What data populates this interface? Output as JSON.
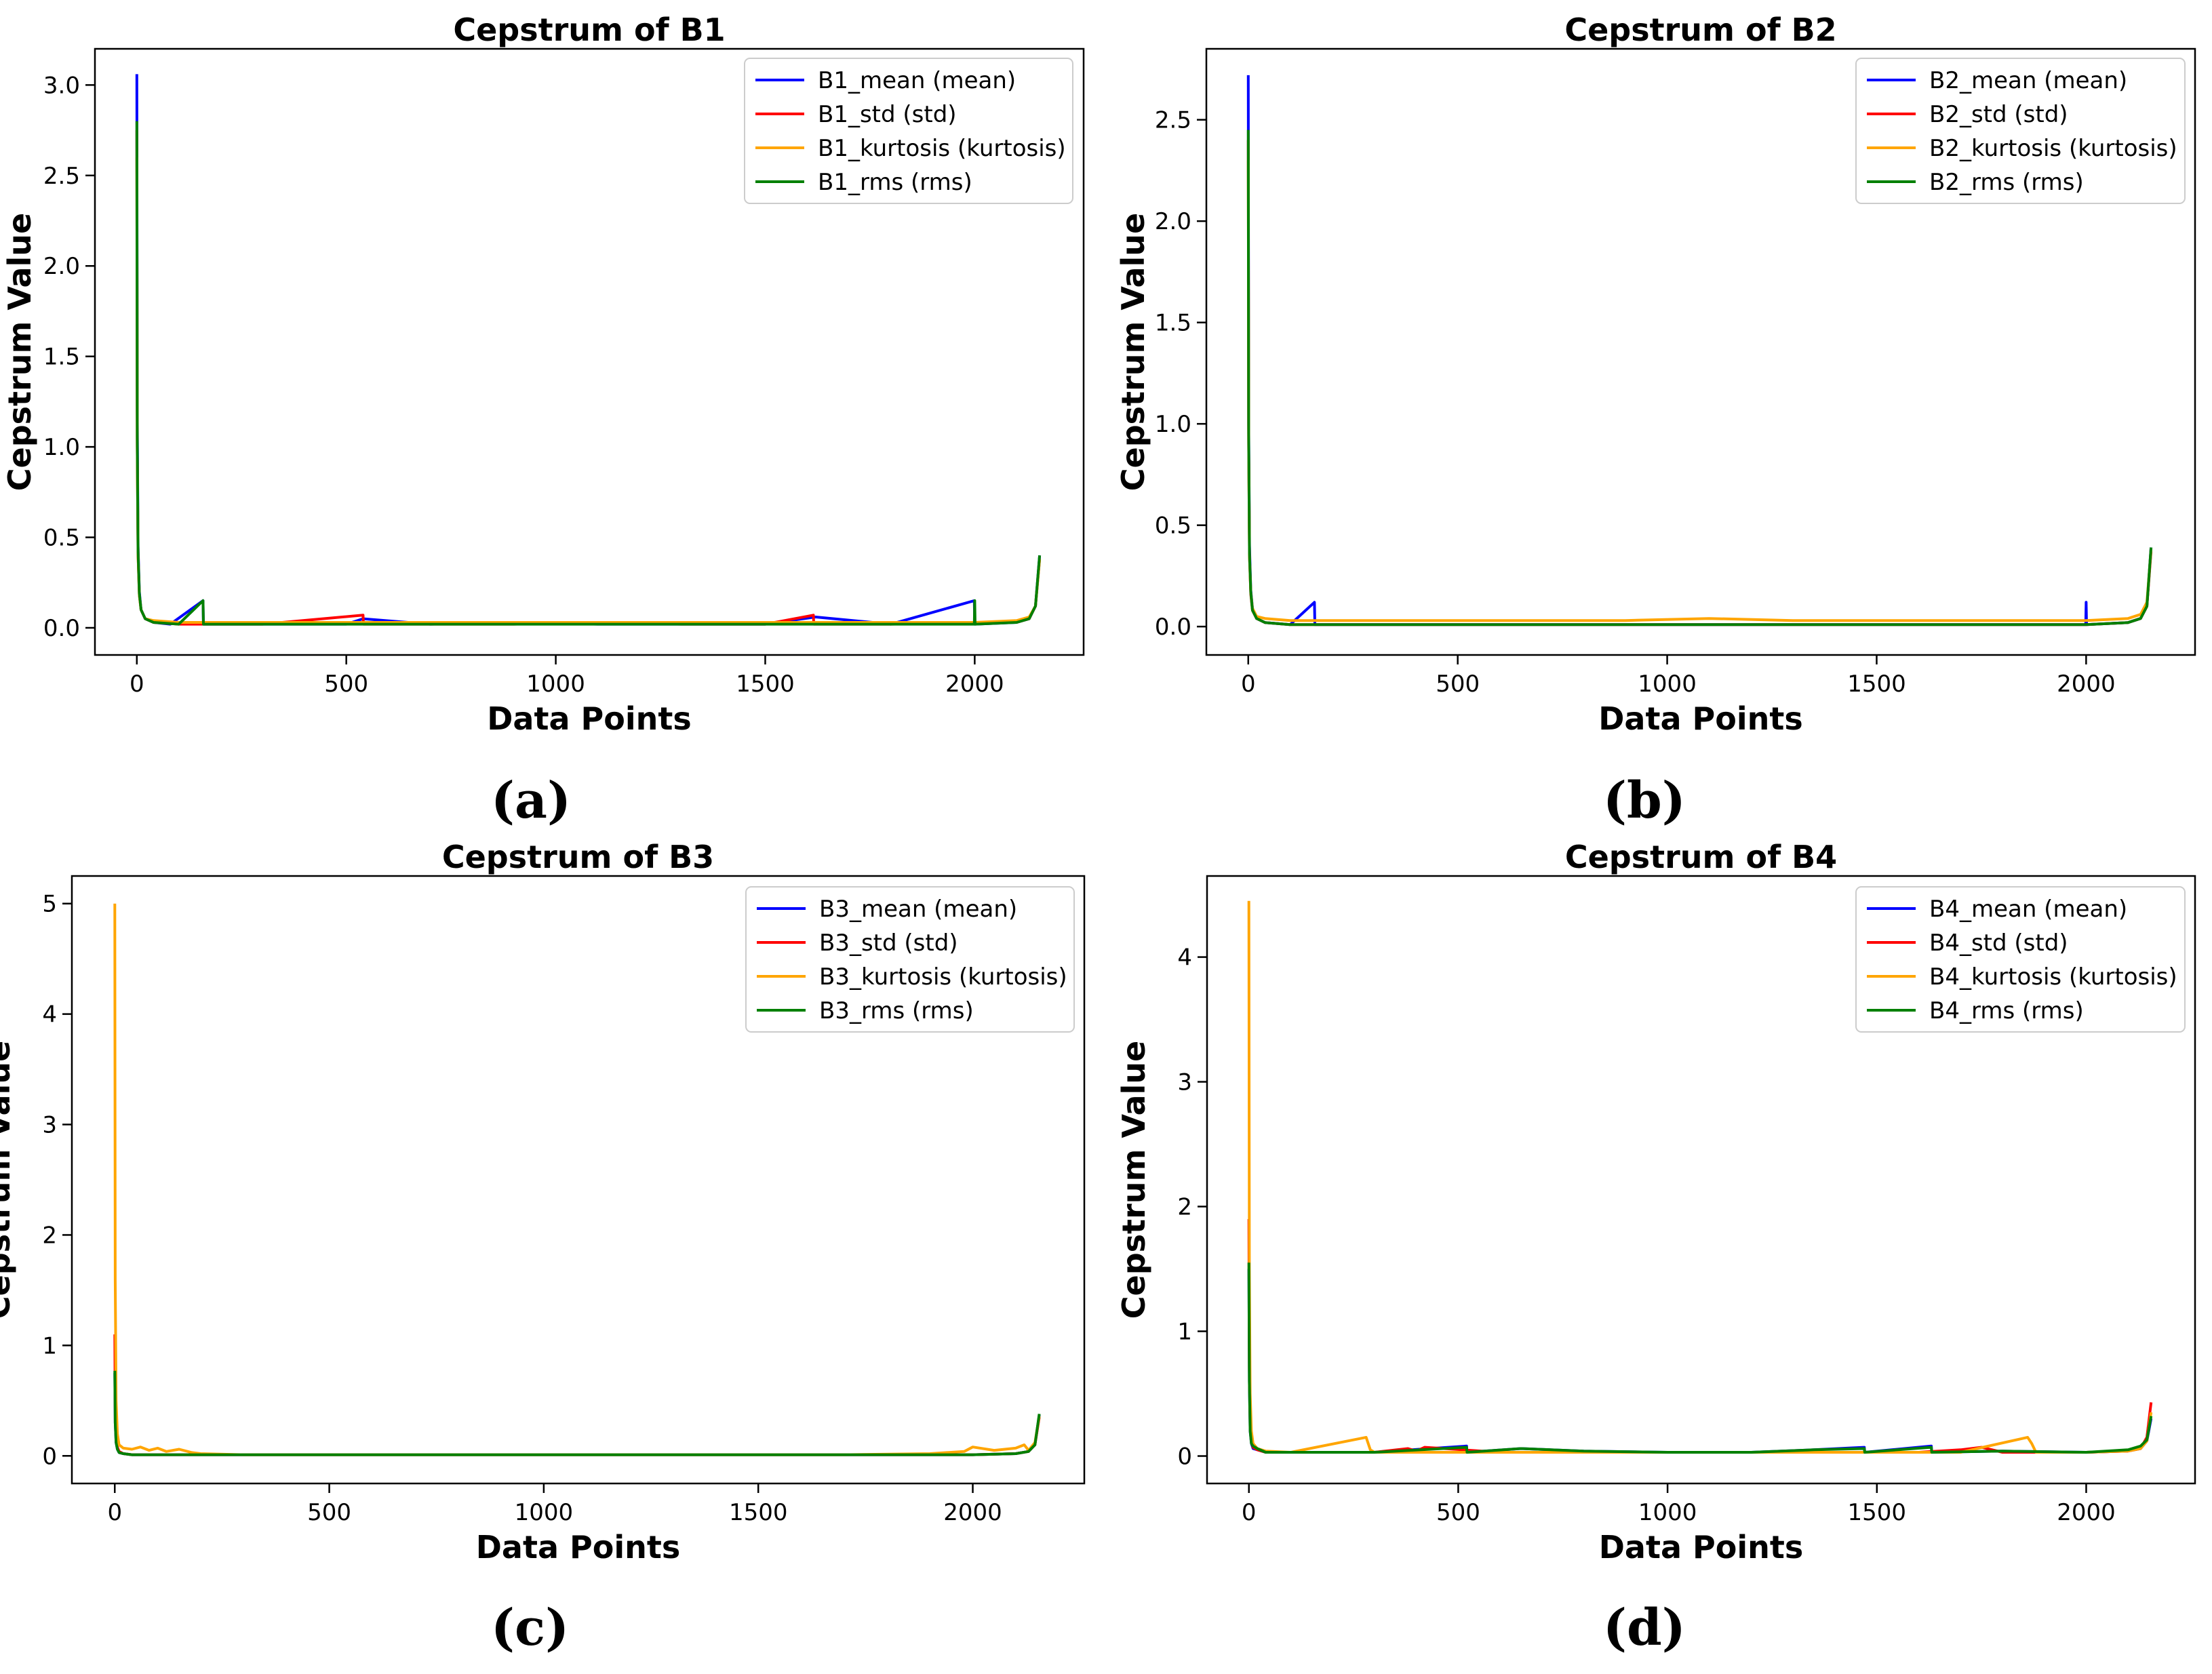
{
  "figure": {
    "captions": [
      "(a)",
      "(b)",
      "(c)",
      "(d)"
    ]
  },
  "colors": {
    "mean": "#0000ff",
    "std": "#ff0000",
    "kurtosis": "#ffa500",
    "rms": "#008000"
  },
  "chart_data": [
    {
      "type": "line",
      "title": "Cepstrum of B1",
      "xlabel": "Data Points",
      "ylabel": "Cepstrum Value",
      "xlim": [
        -100,
        2260
      ],
      "ylim": [
        -0.15,
        3.2
      ],
      "xticks": [
        0,
        500,
        1000,
        1500,
        2000
      ],
      "xtick_labels": [
        "0",
        "500",
        "1000",
        "1500",
        "2000"
      ],
      "yticks": [
        0.0,
        0.5,
        1.0,
        1.5,
        2.0,
        2.5,
        3.0
      ],
      "ytick_labels": [
        "0.0",
        "0.5",
        "1.0",
        "1.5",
        "2.0",
        "2.5",
        "3.0"
      ],
      "legend_position": "top-right",
      "series": [
        {
          "name": "B1_mean (mean)",
          "key": "mean",
          "x": [
            0,
            1,
            3,
            6,
            10,
            20,
            40,
            80,
            158,
            159,
            300,
            500,
            540,
            700,
            900,
            1100,
            1300,
            1500,
            1620,
            1800,
            1999,
            2000,
            2001,
            2100,
            2130,
            2145,
            2155
          ],
          "y": [
            3.06,
            1.2,
            0.45,
            0.2,
            0.1,
            0.05,
            0.03,
            0.02,
            0.15,
            0.02,
            0.02,
            0.02,
            0.05,
            0.02,
            0.03,
            0.02,
            0.02,
            0.02,
            0.06,
            0.02,
            0.15,
            0.02,
            0.02,
            0.03,
            0.05,
            0.12,
            0.4
          ]
        },
        {
          "name": "B1_std (std)",
          "key": "std",
          "x": [
            0,
            1,
            3,
            6,
            10,
            20,
            40,
            100,
            300,
            540,
            541,
            700,
            900,
            1100,
            1300,
            1500,
            1615,
            1616,
            1800,
            2000,
            2100,
            2130,
            2145,
            2155
          ],
          "y": [
            2.75,
            1.0,
            0.4,
            0.18,
            0.1,
            0.05,
            0.03,
            0.02,
            0.02,
            0.07,
            0.02,
            0.02,
            0.02,
            0.03,
            0.02,
            0.02,
            0.07,
            0.02,
            0.02,
            0.03,
            0.03,
            0.05,
            0.12,
            0.38
          ]
        },
        {
          "name": "B1_kurtosis (kurtosis)",
          "key": "kurtosis",
          "x": [
            0,
            1,
            3,
            6,
            10,
            20,
            40,
            100,
            300,
            500,
            700,
            900,
            1100,
            1300,
            1500,
            1700,
            1900,
            2000,
            2100,
            2130,
            2145,
            2155
          ],
          "y": [
            2.6,
            1.0,
            0.4,
            0.18,
            0.1,
            0.05,
            0.04,
            0.03,
            0.03,
            0.03,
            0.03,
            0.03,
            0.03,
            0.03,
            0.03,
            0.03,
            0.03,
            0.03,
            0.04,
            0.06,
            0.12,
            0.38
          ]
        },
        {
          "name": "B1_rms (rms)",
          "key": "rms",
          "x": [
            0,
            1,
            3,
            6,
            10,
            20,
            40,
            100,
            158,
            159,
            300,
            500,
            700,
            900,
            1100,
            1300,
            1500,
            1700,
            1900,
            1999,
            2000,
            2001,
            2100,
            2130,
            2145,
            2155
          ],
          "y": [
            2.8,
            1.05,
            0.42,
            0.19,
            0.1,
            0.05,
            0.03,
            0.02,
            0.15,
            0.02,
            0.02,
            0.02,
            0.02,
            0.02,
            0.02,
            0.02,
            0.02,
            0.02,
            0.02,
            0.02,
            0.15,
            0.02,
            0.03,
            0.05,
            0.12,
            0.4
          ]
        }
      ]
    },
    {
      "type": "line",
      "title": "Cepstrum of B2",
      "xlabel": "Data Points",
      "ylabel": "Cepstrum Value",
      "xlim": [
        -100,
        2260
      ],
      "ylim": [
        -0.14,
        2.85
      ],
      "xticks": [
        0,
        500,
        1000,
        1500,
        2000
      ],
      "xtick_labels": [
        "0",
        "500",
        "1000",
        "1500",
        "2000"
      ],
      "yticks": [
        0.0,
        0.5,
        1.0,
        1.5,
        2.0,
        2.5
      ],
      "ytick_labels": [
        "0.0",
        "0.5",
        "1.0",
        "1.5",
        "2.0",
        "2.5"
      ],
      "legend_position": "top-right",
      "series": [
        {
          "name": "B2_mean (mean)",
          "key": "mean",
          "x": [
            0,
            1,
            3,
            6,
            10,
            20,
            40,
            100,
            158,
            159,
            300,
            500,
            700,
            900,
            1100,
            1300,
            1500,
            1700,
            1900,
            1999,
            2000,
            2001,
            2100,
            2130,
            2145,
            2155
          ],
          "y": [
            2.72,
            1.0,
            0.4,
            0.18,
            0.09,
            0.04,
            0.02,
            0.01,
            0.12,
            0.01,
            0.01,
            0.01,
            0.01,
            0.01,
            0.01,
            0.01,
            0.01,
            0.01,
            0.01,
            0.01,
            0.12,
            0.01,
            0.02,
            0.04,
            0.1,
            0.39
          ]
        },
        {
          "name": "B2_std (std)",
          "key": "std",
          "x": [
            0,
            1,
            3,
            6,
            10,
            20,
            40,
            100,
            300,
            500,
            700,
            900,
            1100,
            1300,
            1500,
            1700,
            1900,
            2000,
            2100,
            2130,
            2145,
            2155
          ],
          "y": [
            2.4,
            0.9,
            0.35,
            0.16,
            0.08,
            0.04,
            0.02,
            0.01,
            0.01,
            0.01,
            0.01,
            0.01,
            0.01,
            0.01,
            0.01,
            0.01,
            0.01,
            0.01,
            0.02,
            0.04,
            0.1,
            0.37
          ]
        },
        {
          "name": "B2_kurtosis (kurtosis)",
          "key": "kurtosis",
          "x": [
            0,
            1,
            3,
            6,
            10,
            20,
            40,
            100,
            300,
            500,
            700,
            900,
            1100,
            1300,
            1500,
            1700,
            1900,
            2000,
            2100,
            2130,
            2145,
            2155
          ],
          "y": [
            2.3,
            0.9,
            0.35,
            0.17,
            0.09,
            0.05,
            0.04,
            0.03,
            0.03,
            0.03,
            0.03,
            0.03,
            0.04,
            0.03,
            0.03,
            0.03,
            0.03,
            0.03,
            0.04,
            0.06,
            0.12,
            0.38
          ]
        },
        {
          "name": "B2_rms (rms)",
          "key": "rms",
          "x": [
            0,
            1,
            3,
            6,
            10,
            20,
            40,
            100,
            300,
            500,
            700,
            900,
            1100,
            1300,
            1500,
            1700,
            1900,
            2000,
            2100,
            2130,
            2145,
            2155
          ],
          "y": [
            2.45,
            0.95,
            0.36,
            0.17,
            0.08,
            0.04,
            0.02,
            0.01,
            0.01,
            0.01,
            0.01,
            0.01,
            0.01,
            0.01,
            0.01,
            0.01,
            0.01,
            0.01,
            0.02,
            0.04,
            0.1,
            0.39
          ]
        }
      ]
    },
    {
      "type": "line",
      "title": "Cepstrum of B3",
      "xlabel": "Data Points",
      "ylabel": "Cepstrum Value",
      "xlim": [
        -100,
        2260
      ],
      "ylim": [
        -0.25,
        5.25
      ],
      "xticks": [
        0,
        500,
        1000,
        1500,
        2000
      ],
      "xtick_labels": [
        "0",
        "500",
        "1000",
        "1500",
        "2000"
      ],
      "yticks": [
        0,
        1,
        2,
        3,
        4,
        5
      ],
      "ytick_labels": [
        "0",
        "1",
        "2",
        "3",
        "4",
        "5"
      ],
      "legend_position": "top-right",
      "series": [
        {
          "name": "B3_mean (mean)",
          "key": "mean",
          "x": [
            0,
            1,
            3,
            6,
            10,
            20,
            40,
            100,
            300,
            500,
            700,
            900,
            1100,
            1300,
            1500,
            1700,
            1900,
            2000,
            2100,
            2130,
            2145,
            2155
          ],
          "y": [
            0.75,
            0.3,
            0.12,
            0.06,
            0.03,
            0.02,
            0.01,
            0.01,
            0.01,
            0.01,
            0.01,
            0.01,
            0.01,
            0.01,
            0.01,
            0.01,
            0.01,
            0.01,
            0.02,
            0.04,
            0.1,
            0.37
          ]
        },
        {
          "name": "B3_std (std)",
          "key": "std",
          "x": [
            0,
            1,
            3,
            6,
            10,
            20,
            40,
            100,
            300,
            500,
            700,
            900,
            1100,
            1300,
            1500,
            1700,
            1900,
            2000,
            2100,
            2130,
            2145,
            2155
          ],
          "y": [
            1.1,
            0.45,
            0.18,
            0.08,
            0.04,
            0.02,
            0.01,
            0.01,
            0.01,
            0.01,
            0.01,
            0.01,
            0.01,
            0.01,
            0.01,
            0.01,
            0.01,
            0.01,
            0.02,
            0.04,
            0.1,
            0.35
          ]
        },
        {
          "name": "B3_kurtosis (kurtosis)",
          "key": "kurtosis",
          "x": [
            0,
            1,
            3,
            6,
            10,
            20,
            40,
            60,
            80,
            100,
            120,
            150,
            180,
            200,
            300,
            500,
            700,
            900,
            1100,
            1300,
            1500,
            1700,
            1900,
            1980,
            2000,
            2050,
            2100,
            2120,
            2130,
            2145,
            2155
          ],
          "y": [
            5.0,
            1.6,
            0.5,
            0.2,
            0.1,
            0.07,
            0.06,
            0.08,
            0.05,
            0.07,
            0.04,
            0.06,
            0.03,
            0.02,
            0.01,
            0.01,
            0.01,
            0.01,
            0.01,
            0.01,
            0.01,
            0.01,
            0.02,
            0.04,
            0.08,
            0.05,
            0.07,
            0.1,
            0.05,
            0.12,
            0.36
          ]
        },
        {
          "name": "B3_rms (rms)",
          "key": "rms",
          "x": [
            0,
            1,
            3,
            6,
            10,
            20,
            40,
            100,
            300,
            500,
            700,
            900,
            1100,
            1300,
            1500,
            1700,
            1900,
            2000,
            2100,
            2130,
            2145,
            2155
          ],
          "y": [
            0.77,
            0.3,
            0.12,
            0.06,
            0.03,
            0.02,
            0.01,
            0.01,
            0.01,
            0.01,
            0.01,
            0.01,
            0.01,
            0.01,
            0.01,
            0.01,
            0.01,
            0.01,
            0.02,
            0.04,
            0.1,
            0.38
          ]
        }
      ]
    },
    {
      "type": "line",
      "title": "Cepstrum of B4",
      "xlabel": "Data Points",
      "ylabel": "Cepstrum Value",
      "xlim": [
        -100,
        2260
      ],
      "ylim": [
        -0.22,
        4.65
      ],
      "xticks": [
        0,
        500,
        1000,
        1500,
        2000
      ],
      "xtick_labels": [
        "0",
        "500",
        "1000",
        "1500",
        "2000"
      ],
      "yticks": [
        0,
        1,
        2,
        3,
        4
      ],
      "ytick_labels": [
        "0",
        "1",
        "2",
        "3",
        "4"
      ],
      "legend_position": "top-right",
      "series": [
        {
          "name": "B4_mean (mean)",
          "key": "mean",
          "x": [
            0,
            1,
            3,
            6,
            10,
            20,
            40,
            100,
            300,
            520,
            521,
            650,
            800,
            1000,
            1200,
            1350,
            1470,
            1471,
            1630,
            1631,
            1800,
            2000,
            2100,
            2130,
            2145,
            2155
          ],
          "y": [
            1.5,
            0.6,
            0.2,
            0.1,
            0.06,
            0.05,
            0.03,
            0.03,
            0.03,
            0.08,
            0.03,
            0.06,
            0.04,
            0.03,
            0.03,
            0.05,
            0.07,
            0.03,
            0.08,
            0.03,
            0.04,
            0.03,
            0.04,
            0.06,
            0.12,
            0.3
          ]
        },
        {
          "name": "B4_std (std)",
          "key": "std",
          "x": [
            0,
            1,
            3,
            6,
            10,
            20,
            40,
            100,
            300,
            380,
            400,
            420,
            600,
            800,
            1000,
            1200,
            1400,
            1600,
            1700,
            1750,
            1800,
            2000,
            2100,
            2130,
            2145,
            2155
          ],
          "y": [
            1.9,
            0.7,
            0.25,
            0.12,
            0.07,
            0.05,
            0.03,
            0.03,
            0.03,
            0.06,
            0.04,
            0.07,
            0.03,
            0.03,
            0.03,
            0.03,
            0.03,
            0.03,
            0.05,
            0.07,
            0.03,
            0.03,
            0.04,
            0.06,
            0.15,
            0.43
          ]
        },
        {
          "name": "B4_kurtosis (kurtosis)",
          "key": "kurtosis",
          "x": [
            0,
            1,
            3,
            6,
            10,
            20,
            40,
            100,
            280,
            290,
            300,
            500,
            700,
            900,
            1100,
            1300,
            1500,
            1700,
            1860,
            1870,
            1880,
            2000,
            2100,
            2130,
            2145,
            2155
          ],
          "y": [
            4.45,
            1.5,
            0.5,
            0.2,
            0.1,
            0.06,
            0.04,
            0.03,
            0.15,
            0.05,
            0.03,
            0.03,
            0.03,
            0.03,
            0.03,
            0.03,
            0.03,
            0.03,
            0.15,
            0.1,
            0.03,
            0.03,
            0.04,
            0.06,
            0.12,
            0.35
          ]
        },
        {
          "name": "B4_rms (rms)",
          "key": "rms",
          "x": [
            0,
            1,
            3,
            6,
            10,
            20,
            40,
            100,
            300,
            520,
            521,
            650,
            800,
            1000,
            1200,
            1350,
            1470,
            1471,
            1630,
            1631,
            1800,
            2000,
            2100,
            2130,
            2145,
            2155
          ],
          "y": [
            1.55,
            0.6,
            0.2,
            0.1,
            0.08,
            0.06,
            0.03,
            0.03,
            0.03,
            0.07,
            0.03,
            0.06,
            0.04,
            0.03,
            0.03,
            0.05,
            0.06,
            0.03,
            0.07,
            0.03,
            0.04,
            0.03,
            0.05,
            0.08,
            0.13,
            0.32
          ]
        }
      ]
    }
  ]
}
